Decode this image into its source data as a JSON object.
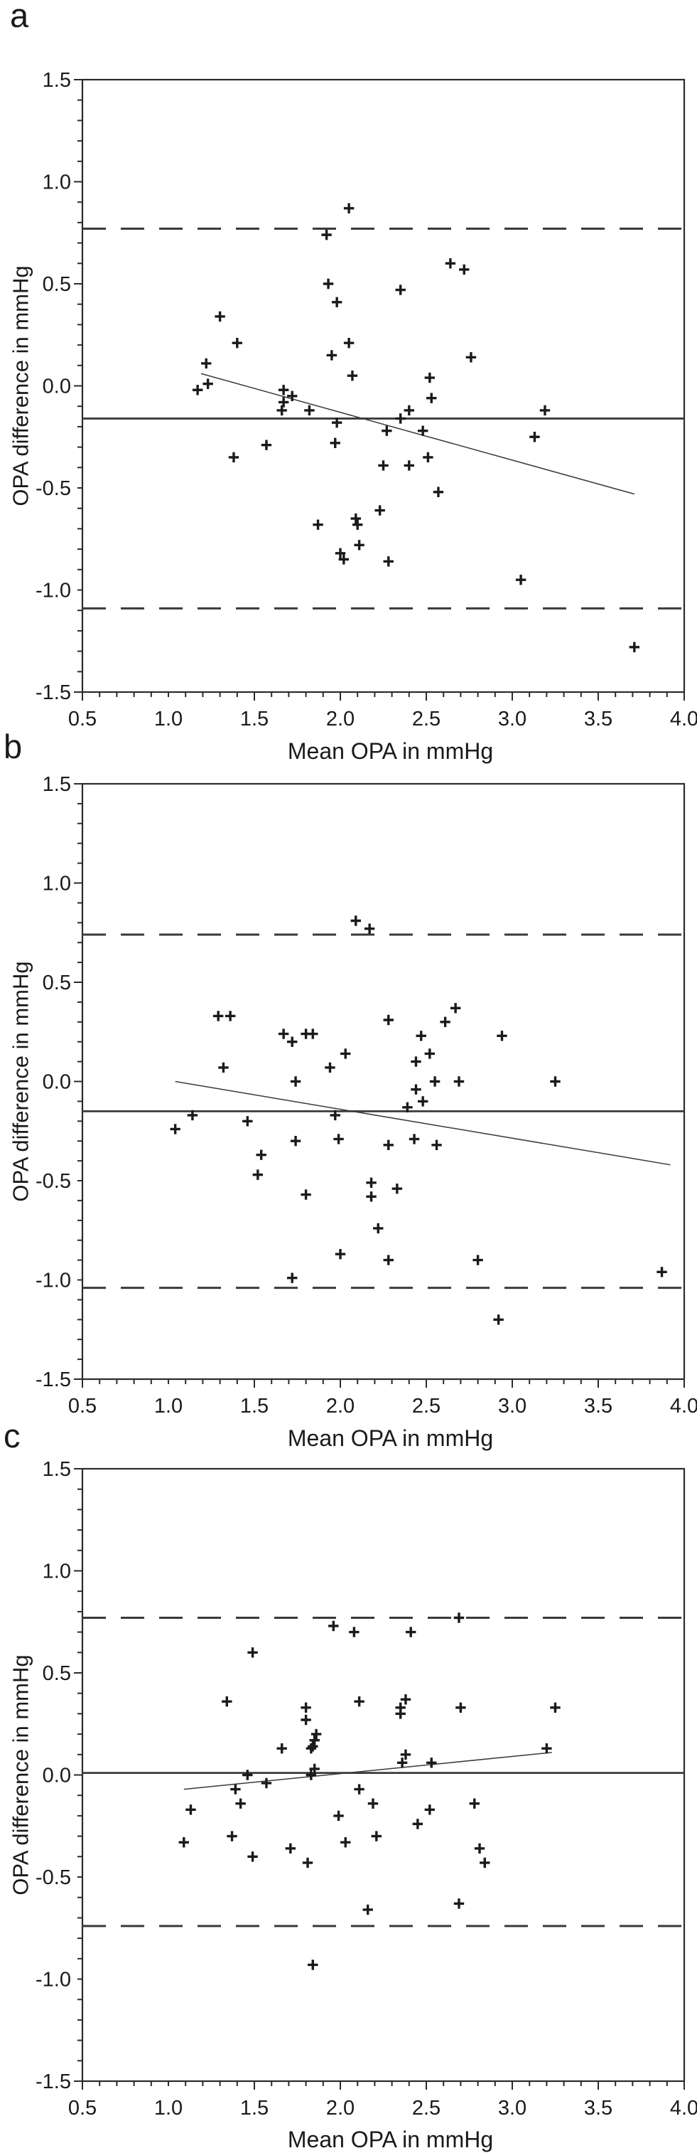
{
  "figure": {
    "marker_glyph": "+",
    "marker_color": "#1a1a1a",
    "axis_color": "#2b2b2b",
    "line_color": "#3a3a3a",
    "background_color": "#ffffff"
  },
  "chart_data": [
    {
      "type": "scatter",
      "panel_label": "a",
      "xlabel": "Mean OPA in mmHg",
      "ylabel": "OPA difference in mmHg",
      "xlim": [
        0.5,
        4.0
      ],
      "ylim": [
        -1.5,
        1.5
      ],
      "xticks": [
        "0.5",
        "1.0",
        "1.5",
        "2.0",
        "2.5",
        "3.0",
        "3.5",
        "4.0"
      ],
      "yticks": [
        "1.5",
        "1.0",
        "0.5",
        "0.0",
        "-0.5",
        "-1.0",
        "-1.5"
      ],
      "minor_tick_step": 0.1,
      "grid": false,
      "mean_diff": -0.16,
      "upper_loa": 0.77,
      "lower_loa": -1.09,
      "regression": {
        "x1": 1.19,
        "y1": 0.06,
        "x2": 3.71,
        "y2": -0.53
      },
      "points": [
        [
          2.05,
          0.87
        ],
        [
          1.92,
          0.74
        ],
        [
          2.64,
          0.6
        ],
        [
          2.72,
          0.57
        ],
        [
          1.93,
          0.5
        ],
        [
          2.35,
          0.47
        ],
        [
          1.98,
          0.41
        ],
        [
          1.3,
          0.34
        ],
        [
          1.4,
          0.21
        ],
        [
          2.05,
          0.21
        ],
        [
          1.95,
          0.15
        ],
        [
          2.76,
          0.14
        ],
        [
          1.22,
          0.11
        ],
        [
          2.07,
          0.05
        ],
        [
          2.52,
          0.04
        ],
        [
          1.23,
          0.01
        ],
        [
          1.17,
          -0.02
        ],
        [
          1.67,
          -0.02
        ],
        [
          1.72,
          -0.05
        ],
        [
          2.53,
          -0.06
        ],
        [
          1.67,
          -0.08
        ],
        [
          1.66,
          -0.12
        ],
        [
          1.82,
          -0.12
        ],
        [
          2.4,
          -0.12
        ],
        [
          3.19,
          -0.12
        ],
        [
          2.35,
          -0.16
        ],
        [
          1.98,
          -0.18
        ],
        [
          2.27,
          -0.22
        ],
        [
          2.48,
          -0.22
        ],
        [
          3.13,
          -0.25
        ],
        [
          1.97,
          -0.28
        ],
        [
          1.57,
          -0.29
        ],
        [
          1.38,
          -0.35
        ],
        [
          2.51,
          -0.35
        ],
        [
          2.25,
          -0.39
        ],
        [
          2.4,
          -0.39
        ],
        [
          2.57,
          -0.52
        ],
        [
          2.23,
          -0.61
        ],
        [
          2.09,
          -0.65
        ],
        [
          1.87,
          -0.68
        ],
        [
          2.1,
          -0.68
        ],
        [
          2.11,
          -0.78
        ],
        [
          2.0,
          -0.82
        ],
        [
          2.02,
          -0.85
        ],
        [
          2.28,
          -0.86
        ],
        [
          3.05,
          -0.95
        ],
        [
          3.71,
          -1.28
        ]
      ]
    },
    {
      "type": "scatter",
      "panel_label": "b",
      "xlabel": "Mean OPA in mmHg",
      "ylabel": "OPA difference in mmHg",
      "xlim": [
        0.5,
        4.0
      ],
      "ylim": [
        -1.5,
        1.5
      ],
      "xticks": [
        "0.5",
        "1.0",
        "1.5",
        "2.0",
        "2.5",
        "3.0",
        "3.5",
        "4.0"
      ],
      "yticks": [
        "1.5",
        "1.0",
        "0.5",
        "0.0",
        "-0.5",
        "-1.0",
        "-1.5"
      ],
      "minor_tick_step": 0.1,
      "grid": false,
      "mean_diff": -0.15,
      "upper_loa": 0.74,
      "lower_loa": -1.04,
      "regression": {
        "x1": 1.04,
        "y1": 0.0,
        "x2": 3.92,
        "y2": -0.42
      },
      "points": [
        [
          2.09,
          0.81
        ],
        [
          2.17,
          0.77
        ],
        [
          2.67,
          0.37
        ],
        [
          1.29,
          0.33
        ],
        [
          1.36,
          0.33
        ],
        [
          2.28,
          0.31
        ],
        [
          2.61,
          0.3
        ],
        [
          1.67,
          0.24
        ],
        [
          1.8,
          0.24
        ],
        [
          1.84,
          0.24
        ],
        [
          2.47,
          0.23
        ],
        [
          2.94,
          0.23
        ],
        [
          1.72,
          0.2
        ],
        [
          2.03,
          0.14
        ],
        [
          2.52,
          0.14
        ],
        [
          2.44,
          0.1
        ],
        [
          1.32,
          0.07
        ],
        [
          1.94,
          0.07
        ],
        [
          1.74,
          0.0
        ],
        [
          2.55,
          0.0
        ],
        [
          2.69,
          0.0
        ],
        [
          3.25,
          0.0
        ],
        [
          2.44,
          -0.04
        ],
        [
          2.48,
          -0.1
        ],
        [
          2.39,
          -0.13
        ],
        [
          1.14,
          -0.17
        ],
        [
          1.97,
          -0.17
        ],
        [
          1.46,
          -0.2
        ],
        [
          1.04,
          -0.24
        ],
        [
          1.99,
          -0.29
        ],
        [
          2.43,
          -0.29
        ],
        [
          1.74,
          -0.3
        ],
        [
          2.28,
          -0.32
        ],
        [
          2.56,
          -0.32
        ],
        [
          1.54,
          -0.37
        ],
        [
          1.52,
          -0.47
        ],
        [
          2.18,
          -0.51
        ],
        [
          2.33,
          -0.54
        ],
        [
          1.8,
          -0.57
        ],
        [
          2.18,
          -0.58
        ],
        [
          2.22,
          -0.74
        ],
        [
          2.0,
          -0.87
        ],
        [
          2.28,
          -0.9
        ],
        [
          2.8,
          -0.9
        ],
        [
          1.72,
          -0.99
        ],
        [
          3.87,
          -0.96
        ],
        [
          2.92,
          -1.2
        ]
      ]
    },
    {
      "type": "scatter",
      "panel_label": "c",
      "xlabel": "Mean OPA in mmHg",
      "ylabel": "OPA difference in mmHg",
      "xlim": [
        0.5,
        4.0
      ],
      "ylim": [
        -1.5,
        1.5
      ],
      "xticks": [
        "0.5",
        "1.0",
        "1.5",
        "2.0",
        "2.5",
        "3.0",
        "3.5",
        "4.0"
      ],
      "yticks": [
        "1.5",
        "1.0",
        "0.5",
        "0.0",
        "-0.5",
        "-1.0",
        "-1.5"
      ],
      "minor_tick_step": 0.1,
      "grid": false,
      "mean_diff": 0.01,
      "upper_loa": 0.77,
      "lower_loa": -0.74,
      "regression": {
        "x1": 1.09,
        "y1": -0.07,
        "x2": 3.23,
        "y2": 0.11
      },
      "points": [
        [
          2.69,
          0.77
        ],
        [
          1.96,
          0.73
        ],
        [
          2.08,
          0.7
        ],
        [
          2.41,
          0.7
        ],
        [
          1.49,
          0.6
        ],
        [
          1.34,
          0.36
        ],
        [
          2.11,
          0.36
        ],
        [
          2.38,
          0.37
        ],
        [
          1.8,
          0.33
        ],
        [
          2.35,
          0.33
        ],
        [
          2.7,
          0.33
        ],
        [
          3.25,
          0.33
        ],
        [
          2.35,
          0.3
        ],
        [
          1.8,
          0.27
        ],
        [
          1.86,
          0.2
        ],
        [
          1.85,
          0.17
        ],
        [
          1.84,
          0.14
        ],
        [
          1.83,
          0.13
        ],
        [
          1.66,
          0.13
        ],
        [
          3.2,
          0.13
        ],
        [
          2.38,
          0.1
        ],
        [
          2.36,
          0.06
        ],
        [
          2.53,
          0.06
        ],
        [
          1.85,
          0.03
        ],
        [
          1.46,
          0.0
        ],
        [
          1.83,
          0.0
        ],
        [
          1.57,
          -0.04
        ],
        [
          1.39,
          -0.07
        ],
        [
          2.11,
          -0.07
        ],
        [
          1.42,
          -0.14
        ],
        [
          2.19,
          -0.14
        ],
        [
          2.78,
          -0.14
        ],
        [
          1.13,
          -0.17
        ],
        [
          2.52,
          -0.17
        ],
        [
          1.99,
          -0.2
        ],
        [
          2.45,
          -0.24
        ],
        [
          1.37,
          -0.3
        ],
        [
          2.21,
          -0.3
        ],
        [
          1.09,
          -0.33
        ],
        [
          2.03,
          -0.33
        ],
        [
          1.71,
          -0.36
        ],
        [
          2.81,
          -0.36
        ],
        [
          1.49,
          -0.4
        ],
        [
          1.81,
          -0.43
        ],
        [
          2.84,
          -0.43
        ],
        [
          2.69,
          -0.63
        ],
        [
          2.16,
          -0.66
        ],
        [
          1.84,
          -0.93
        ]
      ]
    }
  ]
}
